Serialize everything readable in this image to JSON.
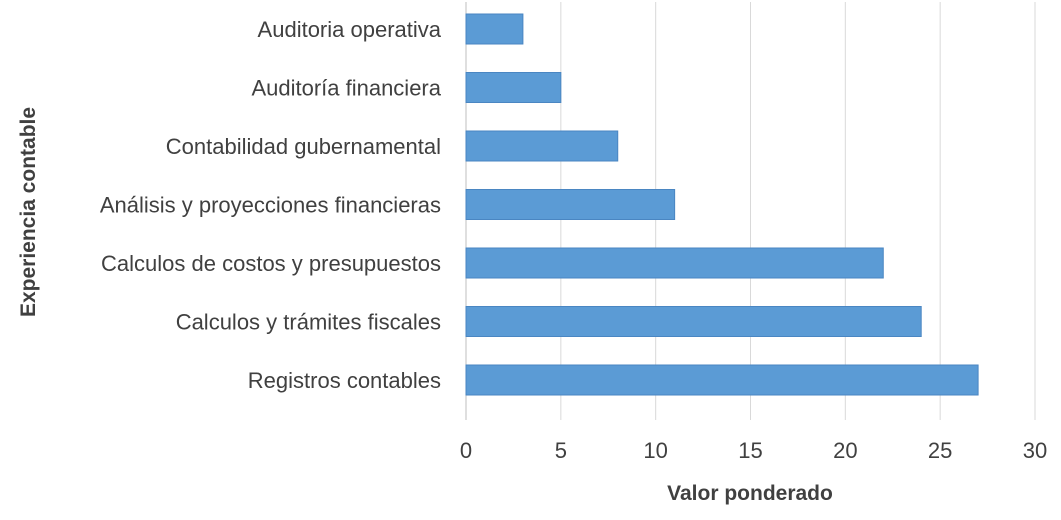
{
  "chart_data": {
    "type": "bar",
    "orientation": "horizontal",
    "title": "",
    "xlabel": "Valor ponderado",
    "ylabel": "Experiencia contable",
    "categories": [
      "Auditoria operativa",
      "Auditoría financiera",
      "Contabilidad gubernamental",
      "Análisis y proyecciones financieras",
      "Calculos de costos y presupuestos",
      "Calculos y trámites fiscales",
      "Registros contables"
    ],
    "values": [
      3,
      5,
      8,
      11,
      22,
      24,
      27
    ],
    "xlim": [
      0,
      30
    ],
    "xticks": [
      "0",
      "5",
      "10",
      "15",
      "20",
      "25",
      "30"
    ],
    "grid": true,
    "legend": "none",
    "bar_color": "#5b9bd5",
    "bar_stroke_color": "#4a86c2"
  }
}
